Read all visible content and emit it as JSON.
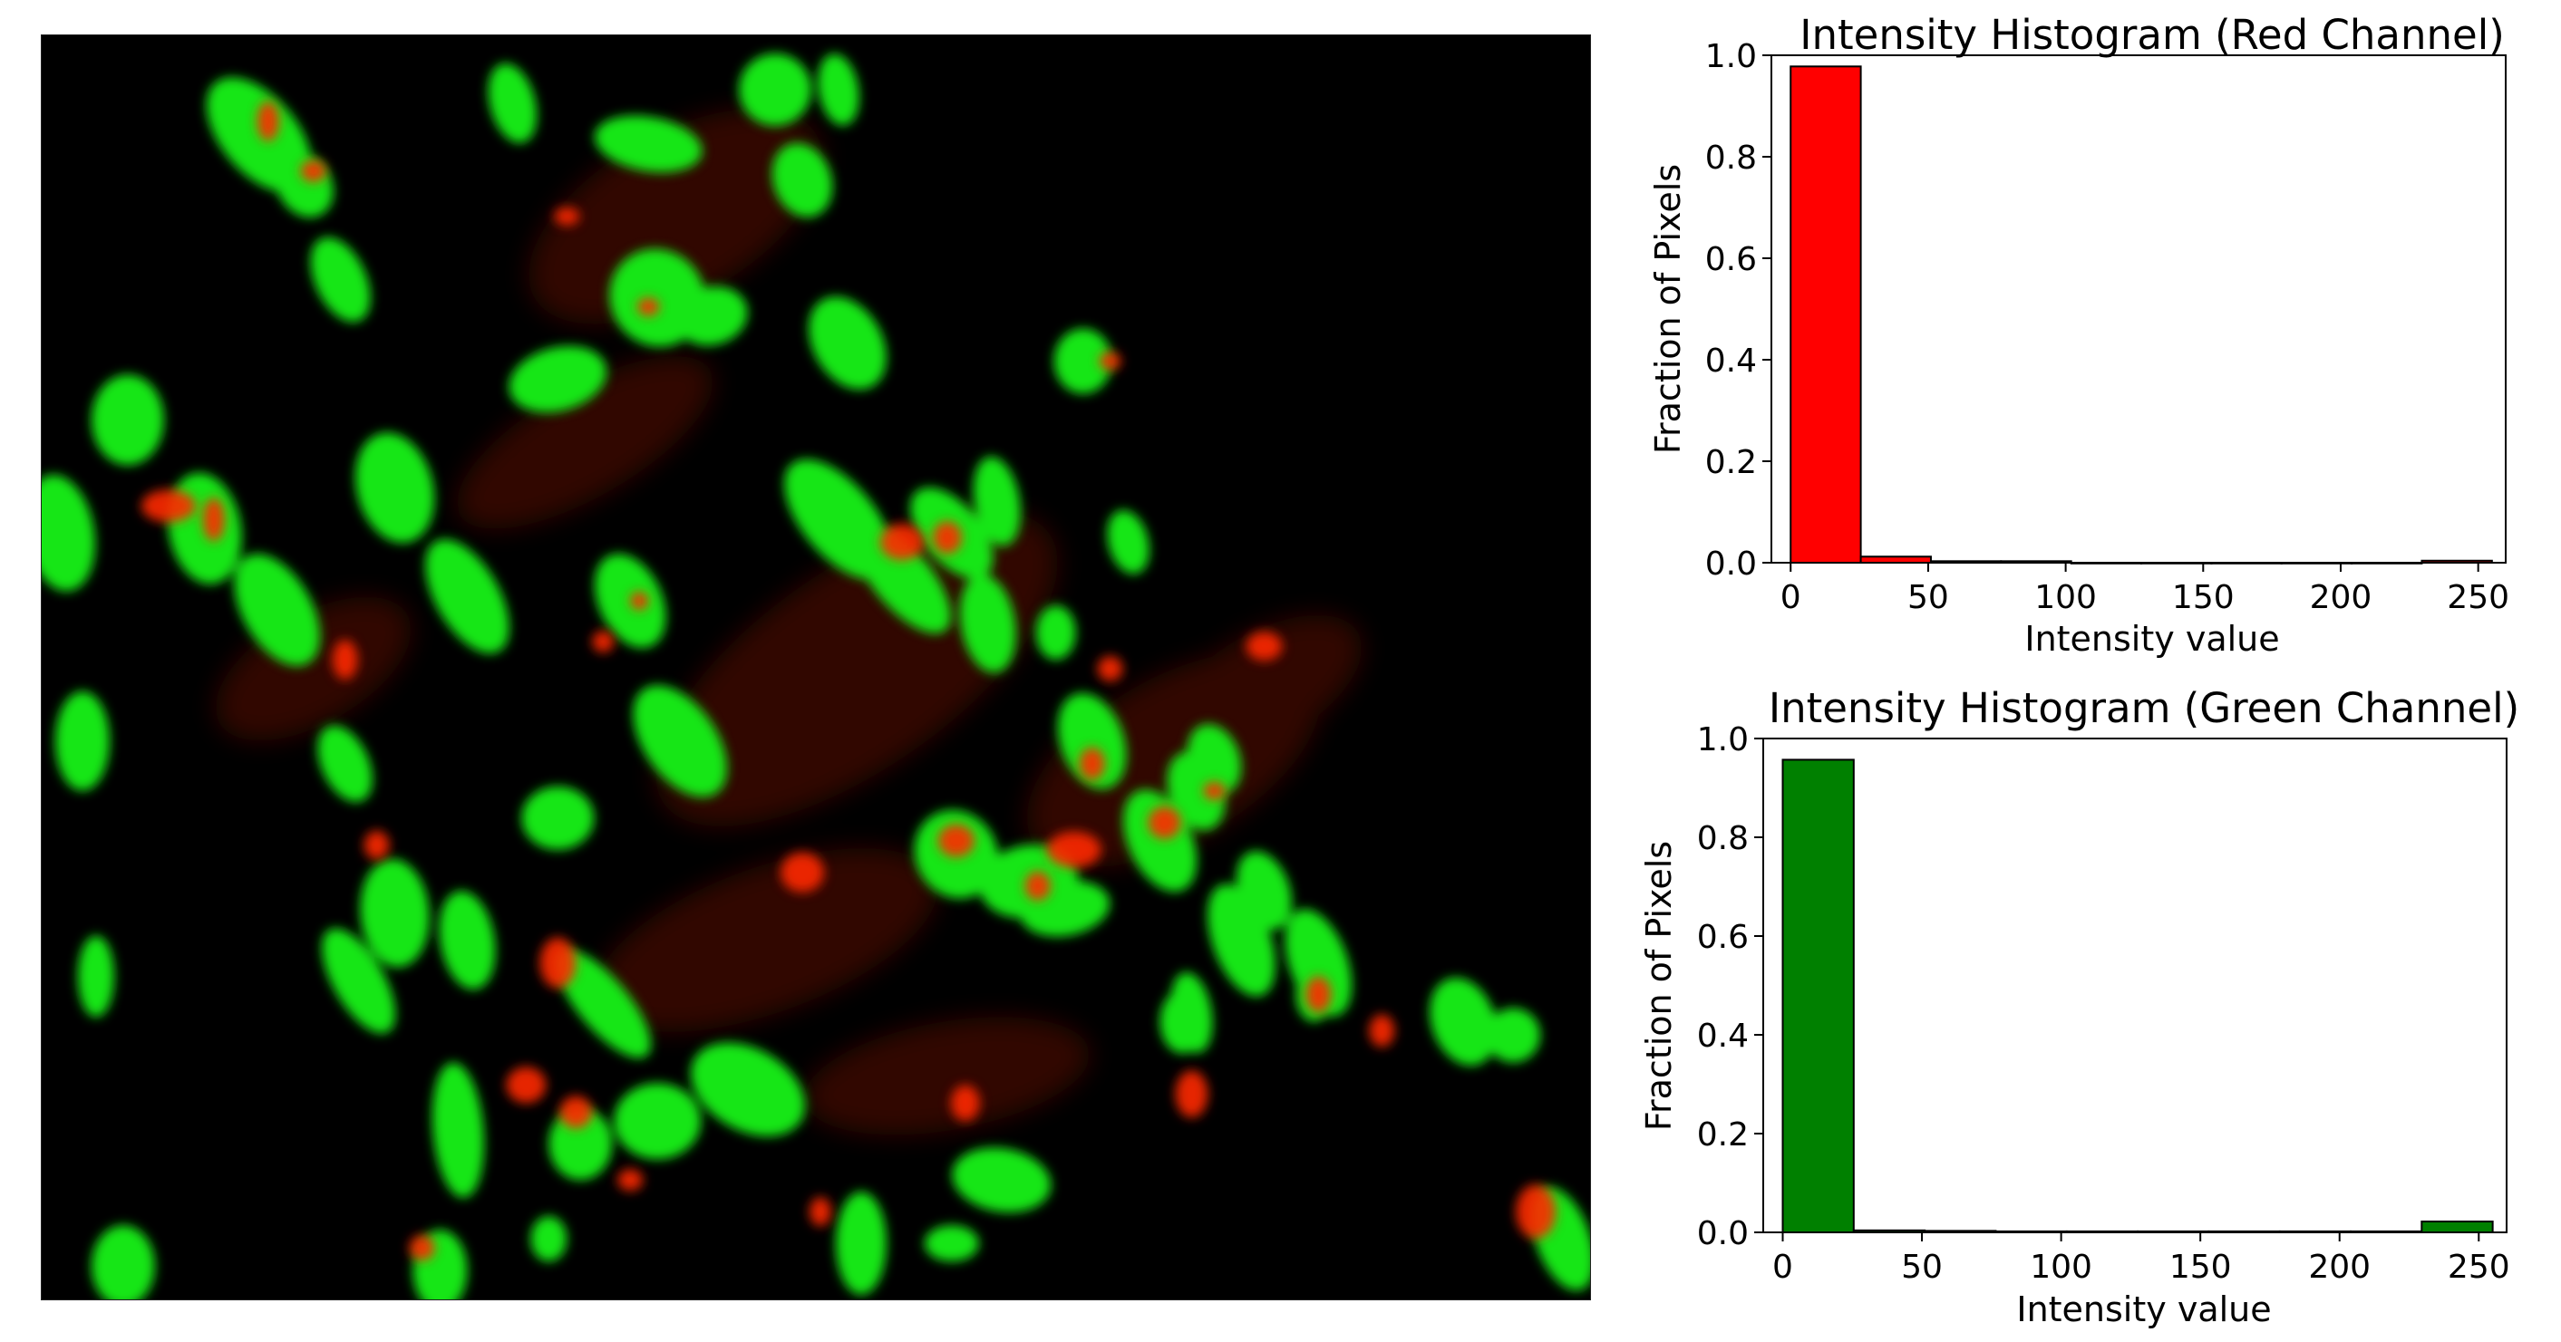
{
  "image": {
    "description_free": true
  },
  "chart_data": [
    {
      "type": "bar",
      "title": "Intensity Histogram (Red Channel)",
      "xlabel": "Intensity value",
      "ylabel": "Fraction of Pixels",
      "xlim": [
        -7,
        260
      ],
      "ylim": [
        0,
        1.0
      ],
      "xticks": [
        0,
        50,
        100,
        150,
        200,
        250
      ],
      "yticks": [
        0.0,
        0.2,
        0.4,
        0.6,
        0.8,
        1.0
      ],
      "bin_edges": [
        0,
        25.5,
        51,
        76.5,
        102,
        127.5,
        153,
        178.5,
        204,
        229.5,
        255
      ],
      "values": [
        0.978,
        0.012,
        0.003,
        0.003,
        0.0,
        0.0,
        0.0,
        0.0,
        0.0,
        0.004
      ],
      "color": "#ff0000",
      "edge_color": "#000000",
      "grid": false,
      "legend": "none"
    },
    {
      "type": "bar",
      "title": "Intensity Histogram (Green Channel)",
      "xlabel": "Intensity value",
      "ylabel": "Fraction of Pixels",
      "xlim": [
        -7,
        260
      ],
      "ylim": [
        0,
        1.0
      ],
      "xticks": [
        0,
        50,
        100,
        150,
        200,
        250
      ],
      "yticks": [
        0.0,
        0.2,
        0.4,
        0.6,
        0.8,
        1.0
      ],
      "bin_edges": [
        0,
        25.5,
        51,
        76.5,
        102,
        127.5,
        153,
        178.5,
        204,
        229.5,
        255
      ],
      "values": [
        0.957,
        0.004,
        0.003,
        0.002,
        0.002,
        0.002,
        0.002,
        0.002,
        0.002,
        0.022
      ],
      "color": "#008000",
      "edge_color": "#000000",
      "grid": false,
      "legend": "none"
    }
  ]
}
